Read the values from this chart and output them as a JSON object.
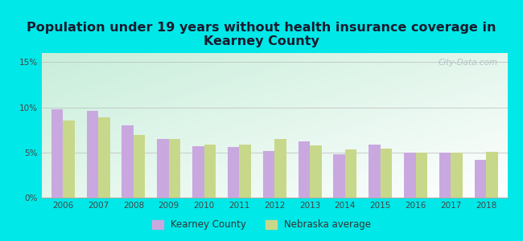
{
  "title": "Population under 19 years without health insurance coverage in\nKearney County",
  "years": [
    2006,
    2007,
    2008,
    2009,
    2010,
    2011,
    2012,
    2013,
    2014,
    2015,
    2016,
    2017,
    2018
  ],
  "kearney": [
    9.8,
    9.6,
    8.0,
    6.5,
    5.7,
    5.6,
    5.2,
    6.2,
    4.8,
    5.9,
    5.0,
    5.0,
    4.2
  ],
  "nebraska": [
    8.5,
    8.9,
    6.9,
    6.5,
    5.9,
    5.9,
    6.5,
    5.8,
    5.3,
    5.4,
    5.0,
    5.0,
    5.1
  ],
  "kearney_color": "#c9a8e0",
  "nebraska_color": "#c8d88a",
  "bg_outer": "#00e8e8",
  "bg_plot_topleft": "#c8eeda",
  "bg_plot_right": "#e8f4f8",
  "bg_plot_bottom": "#ffffff",
  "title_fontsize": 11.5,
  "ylabel_ticks": [
    "0%",
    "5%",
    "10%",
    "15%"
  ],
  "yticks": [
    0,
    5,
    10,
    15
  ],
  "ylim": [
    0,
    16
  ],
  "legend_kearney": "Kearney County",
  "legend_nebraska": "Nebraska average",
  "watermark": "City-Data.com"
}
